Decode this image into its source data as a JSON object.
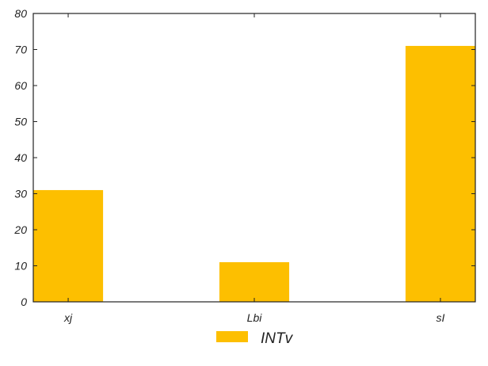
{
  "chart_data": {
    "type": "bar",
    "categories": [
      "xj",
      "Lbi",
      "sI"
    ],
    "series": [
      {
        "name": "INTv",
        "values": [
          31,
          11,
          71
        ],
        "color": "#FDBF00"
      }
    ],
    "title": "",
    "xlabel": "",
    "ylabel": "",
    "ylim": [
      0,
      80
    ],
    "yticks": [
      0,
      10,
      20,
      30,
      40,
      50,
      60,
      70,
      80
    ],
    "ytick_labels": [
      "0",
      "10",
      "20",
      "30",
      "40",
      "50",
      "60",
      "70",
      "80"
    ],
    "grid": false,
    "legend": {
      "position": "bottom-center",
      "entries": [
        "INTv"
      ]
    }
  }
}
